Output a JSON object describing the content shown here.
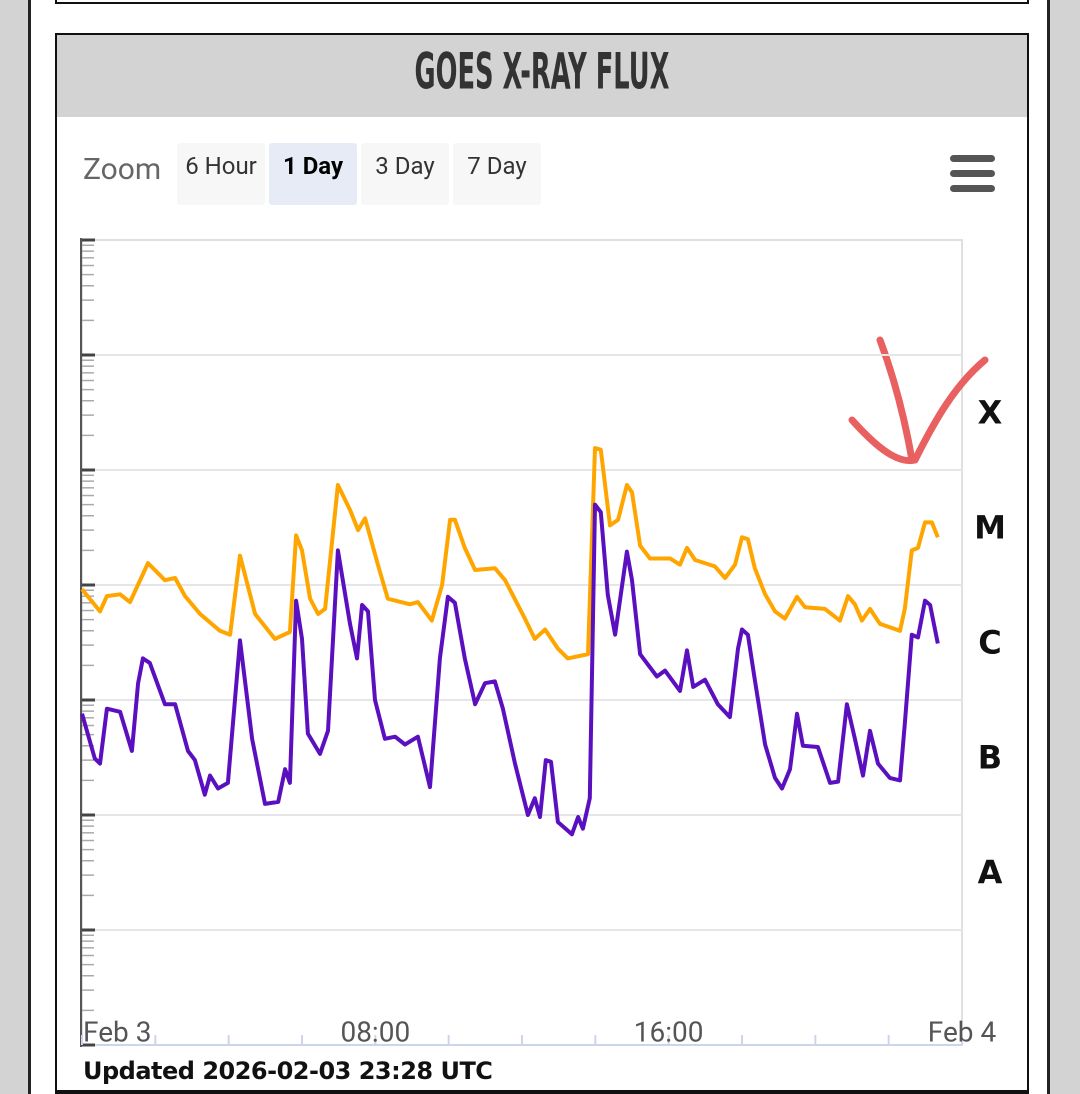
{
  "ui": {
    "zoom": {
      "label": "Zoom",
      "options": [
        "6 Hour",
        "1 Day",
        "3 Day",
        "7 Day"
      ],
      "selected": 1
    }
  },
  "updated": "Updated 2026-02-03 23:28 UTC",
  "chart_data": {
    "type": "line",
    "title": "GOES X-RAY FLUX",
    "log_scale": true,
    "grid": true,
    "xlim": [
      0,
      24
    ],
    "xticks": [
      {
        "value": 0,
        "label": "Feb 3"
      },
      {
        "value": 8,
        "label": "08:00"
      },
      {
        "value": 16,
        "label": "16:00"
      },
      {
        "value": 24,
        "label": "Feb 4"
      }
    ],
    "xminorticks": [
      2,
      4,
      6,
      10,
      12,
      14,
      18,
      20,
      22
    ],
    "ylim": [
      1e-09,
      0.01
    ],
    "yticks": [
      1e-09,
      1e-08,
      1e-07,
      1e-06,
      1e-05,
      0.0001,
      0.001,
      0.01
    ],
    "class_labels": [
      {
        "value": 0.0001,
        "label": "X"
      },
      {
        "value": 1e-05,
        "label": "M"
      },
      {
        "value": 1e-06,
        "label": "C"
      },
      {
        "value": 1e-07,
        "label": "B"
      },
      {
        "value": 1e-08,
        "label": "A"
      }
    ],
    "series": [
      {
        "color": "#ffa500",
        "x": [
          0,
          0.49,
          0.68,
          1.04,
          1.31,
          1.8,
          2.26,
          2.54,
          2.81,
          3.22,
          3.76,
          4.04,
          4.31,
          4.72,
          5.26,
          5.67,
          5.84,
          6.0,
          6.22,
          6.44,
          6.63,
          6.98,
          7.31,
          7.53,
          7.72,
          8.07,
          8.34,
          8.94,
          9.16,
          9.54,
          9.82,
          10.04,
          10.17,
          10.44,
          10.72,
          11.26,
          11.54,
          12.08,
          12.35,
          12.63,
          12.98,
          13.25,
          13.8,
          13.99,
          14.15,
          14.4,
          14.62,
          14.86,
          15.0,
          15.22,
          15.49,
          16.04,
          16.31,
          16.5,
          16.72,
          17.26,
          17.54,
          17.81,
          18.0,
          18.16,
          18.35,
          18.63,
          18.9,
          19.17,
          19.5,
          19.72,
          20.26,
          20.67,
          20.89,
          21.08,
          21.27,
          21.49,
          21.76,
          22.31,
          22.44,
          22.63,
          22.8,
          22.99,
          23.18,
          23.34
        ],
        "values": [
          9.2e-06,
          5.9e-06,
          8e-06,
          8.3e-06,
          7.1e-06,
          1.55e-05,
          1.1e-05,
          1.15e-05,
          8e-06,
          5.6e-06,
          4e-06,
          3.7e-06,
          1.8e-05,
          5.6e-06,
          3.4e-06,
          3.9e-06,
          2.7e-05,
          2e-05,
          7.6e-06,
          5.6e-06,
          6.2e-06,
          7.4e-05,
          4.5e-05,
          3e-05,
          3.8e-05,
          1.5e-05,
          7.6e-06,
          6.8e-06,
          7.1e-06,
          4.9e-06,
          1e-05,
          3.7e-05,
          3.7e-05,
          2.1e-05,
          1.35e-05,
          1.4e-05,
          1.1e-05,
          5.1e-06,
          3.4e-06,
          4.1e-06,
          2.8e-06,
          2.3e-06,
          2.5e-06,
          0.000155,
          0.00015,
          3.3e-05,
          3.7e-05,
          7.4e-05,
          6.4e-05,
          2.2e-05,
          1.7e-05,
          1.7e-05,
          1.5e-05,
          2.1e-05,
          1.65e-05,
          1.45e-05,
          1.15e-05,
          1.5e-05,
          2.6e-05,
          2.5e-05,
          1.4e-05,
          8.3e-06,
          5.9e-06,
          5.1e-06,
          7.9e-06,
          6.4e-06,
          6.2e-06,
          4.9e-06,
          8e-06,
          6.8e-06,
          4.9e-06,
          6.2e-06,
          4.6e-06,
          4e-06,
          6.2e-06,
          2e-05,
          2.1e-05,
          3.5e-05,
          3.5e-05,
          2.6e-05
        ]
      },
      {
        "color": "#5a10bf",
        "x": [
          0,
          0.35,
          0.49,
          0.68,
          1.04,
          1.36,
          1.53,
          1.66,
          1.85,
          2.26,
          2.54,
          2.89,
          3.08,
          3.35,
          3.49,
          3.71,
          3.98,
          4.31,
          4.64,
          4.99,
          5.35,
          5.54,
          5.67,
          5.84,
          6.0,
          6.16,
          6.49,
          6.71,
          6.98,
          7.31,
          7.5,
          7.64,
          7.8,
          7.99,
          8.26,
          8.54,
          8.81,
          9.16,
          9.49,
          9.76,
          9.98,
          10.17,
          10.44,
          10.72,
          10.99,
          11.26,
          11.48,
          11.81,
          12.16,
          12.35,
          12.49,
          12.65,
          12.79,
          12.98,
          13.36,
          13.53,
          13.66,
          13.85,
          13.99,
          14.15,
          14.34,
          14.54,
          14.86,
          15.0,
          15.22,
          15.68,
          15.9,
          16.31,
          16.5,
          16.67,
          16.99,
          17.34,
          17.67,
          17.89,
          18.0,
          18.16,
          18.35,
          18.63,
          18.9,
          19.09,
          19.31,
          19.5,
          19.66,
          20.07,
          20.4,
          20.62,
          20.86,
          21.08,
          21.3,
          21.49,
          21.71,
          22.03,
          22.31,
          22.44,
          22.63,
          22.8,
          22.99,
          23.13,
          23.34
        ],
        "values": [
          7.6e-07,
          3.1e-07,
          2.8e-07,
          8.4e-07,
          7.9e-07,
          3.6e-07,
          1.4e-06,
          2.3e-06,
          2.1e-06,
          9.2e-07,
          9.2e-07,
          3.6e-07,
          3e-07,
          1.5e-07,
          2.2e-07,
          1.7e-07,
          1.9e-07,
          3.3e-06,
          4.6e-07,
          1.25e-07,
          1.3e-07,
          2.5e-07,
          1.9e-07,
          7.3e-06,
          3.4e-06,
          5.1e-07,
          3.4e-07,
          5.4e-07,
          2e-05,
          4.6e-06,
          2.3e-06,
          6.7e-06,
          5.9e-06,
          1e-06,
          4.6e-07,
          4.8e-07,
          4.1e-07,
          4.8e-07,
          1.75e-07,
          2.3e-06,
          7.9e-06,
          7e-06,
          2.3e-06,
          9.2e-07,
          1.4e-06,
          1.45e-06,
          8.4e-07,
          2.8e-07,
          1e-07,
          1.4e-07,
          9.6e-08,
          3e-07,
          2.9e-07,
          8.7e-08,
          6.8e-08,
          9.6e-08,
          7.6e-08,
          1.4e-07,
          5e-05,
          4.3e-05,
          8.2e-06,
          3.7e-06,
          1.95e-05,
          1.1e-05,
          2.5e-06,
          1.6e-06,
          1.8e-06,
          1.2e-06,
          2.7e-06,
          1.3e-06,
          1.5e-06,
          9.2e-07,
          7.1e-07,
          2.8e-06,
          4.1e-06,
          3.7e-06,
          1.5e-06,
          4.1e-07,
          2.1e-07,
          1.7e-07,
          2.5e-07,
          7.6e-07,
          4e-07,
          3.9e-07,
          1.9e-07,
          1.95e-07,
          9.2e-07,
          4.6e-07,
          2.2e-07,
          5.4e-07,
          2.8e-07,
          2.1e-07,
          2e-07,
          6.2e-07,
          3.7e-06,
          3.5e-06,
          7.3e-06,
          6.7e-06,
          3.1e-06
        ]
      }
    ]
  }
}
